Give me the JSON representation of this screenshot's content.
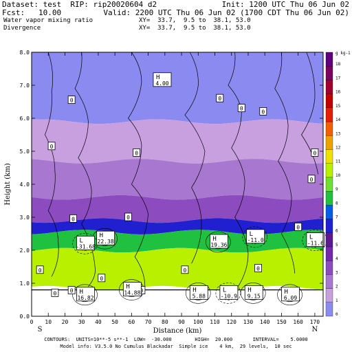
{
  "header": {
    "dataset": "Dataset: test  RIP: rip20020604 d2",
    "init": "Init: 1200 UTC Thu 06 Jun 02",
    "fcst": "Fcst:   10.00",
    "valid": "Valid: 2200 UTC Thu 06 Jun 02 (1700 CDT Thu 06 Jun 02)",
    "field1": "Water vapor mixing ratio",
    "xy1": "XY=  33.7,  9.5 to  38.1, 53.0",
    "field2": "Divergence",
    "xy2": "XY=  33.7,  9.5 to  38.1, 53.0"
  },
  "footer": {
    "line1": "CONTOURS:  UNITS=10**-5 s**-1  LOW=  -30.000        HIGH=  20.000       INTERVAL=    5.0000",
    "line2": "Model info: V3.5.0 No Cumulus Blackadar  Simple ice    4 km,  29 levels,  10 sec"
  },
  "chart_data": {
    "type": "cross-section",
    "xlabel": "Distance (km)",
    "ylabel": "Height (km)",
    "xlim": [
      0,
      175
    ],
    "ylim": [
      0,
      8
    ],
    "x_ticks": [
      0,
      10,
      20,
      30,
      40,
      50,
      60,
      70,
      80,
      90,
      100,
      110,
      120,
      130,
      140,
      150,
      160,
      170
    ],
    "y_ticks": [
      "0.0",
      "1.0",
      "2.0",
      "3.0",
      "4.0",
      "5.0",
      "6.0",
      "7.0",
      "8.0"
    ],
    "x_end_labels": {
      "left": "S",
      "right": "N"
    },
    "colorbar": {
      "unit": "g kg-1",
      "levels": [
        0,
        1,
        2,
        3,
        4,
        5,
        6,
        7,
        8,
        9,
        10,
        11,
        12,
        13,
        14,
        15,
        16,
        17,
        18
      ],
      "colors": [
        "#8a8af0",
        "#c8a0e0",
        "#a878d0",
        "#8c4cc0",
        "#7428b0",
        "#5c1890",
        "#2020d0",
        "#0060e0",
        "#20c040",
        "#70e030",
        "#b8f000",
        "#f0e000",
        "#f0a000",
        "#f06000",
        "#e02000",
        "#c00000",
        "#a00030",
        "#800060",
        "#600080"
      ]
    },
    "bands": [
      {
        "layer": "1-2 g/kg",
        "color": "#8a8af0",
        "bottom_km": 5.9,
        "top_km": 8.0
      },
      {
        "layer": "2-3 g/kg",
        "color": "#c8a0e0",
        "bottom_km": 4.7,
        "top_km": 5.9
      },
      {
        "layer": "3-4 g/kg",
        "color": "#a878d0",
        "bottom_km": 3.6,
        "top_km": 4.7
      },
      {
        "layer": "4-5 g/kg",
        "color": "#8c4cc0",
        "bottom_km": 2.9,
        "top_km": 3.6
      },
      {
        "layer": "6-7 g/kg",
        "color": "#2020d0",
        "bottom_km": 2.55,
        "top_km": 2.9
      },
      {
        "layer": "8-9 g/kg",
        "color": "#20c040",
        "bottom_km": 2.0,
        "top_km": 2.55
      },
      {
        "layer": "9-10 g/kg",
        "color": "#b8f000",
        "bottom_km": 0.85,
        "top_km": 2.0
      }
    ],
    "terrain_km": 0.8,
    "contour_labels": [
      {
        "x": 25,
        "y": 2.95,
        "text": "0"
      },
      {
        "x": 5,
        "y": 1.4,
        "text": "0"
      },
      {
        "x": 14,
        "y": 0.7,
        "text": "0"
      },
      {
        "x": 42,
        "y": 1.15,
        "text": "0"
      },
      {
        "x": 58,
        "y": 3.0,
        "text": "0"
      },
      {
        "x": 24,
        "y": 6.55,
        "text": "0"
      },
      {
        "x": 12,
        "y": 5.15,
        "text": "0"
      },
      {
        "x": 63,
        "y": 4.95,
        "text": "0"
      },
      {
        "x": 113,
        "y": 6.6,
        "text": "0"
      },
      {
        "x": 126,
        "y": 6.3,
        "text": "0"
      },
      {
        "x": 139,
        "y": 6.2,
        "text": "0"
      },
      {
        "x": 170,
        "y": 4.95,
        "text": "0"
      },
      {
        "x": 168,
        "y": 4.15,
        "text": "0"
      },
      {
        "x": 160,
        "y": 2.7,
        "text": "0"
      },
      {
        "x": 136,
        "y": 1.45,
        "text": "0"
      },
      {
        "x": 92,
        "y": 1.4,
        "text": "0"
      },
      {
        "x": 66,
        "y": 0.78,
        "text": "0"
      },
      {
        "x": 24,
        "y": 0.78,
        "text": "0"
      }
    ],
    "extrema": [
      {
        "x": 78,
        "y": 7.15,
        "type": "H",
        "value": "4.00"
      },
      {
        "x": 32,
        "y": 2.2,
        "type": "L",
        "value": "-31.68"
      },
      {
        "x": 44,
        "y": 2.35,
        "type": "H",
        "value": "22.38"
      },
      {
        "x": 112,
        "y": 2.25,
        "type": "H",
        "value": "19.36"
      },
      {
        "x": 134,
        "y": 2.4,
        "type": "L",
        "value": "-11.0"
      },
      {
        "x": 170,
        "y": 2.3,
        "type": "L",
        "value": "-11.6"
      },
      {
        "x": 32,
        "y": 0.65,
        "type": "H",
        "value": "16.82"
      },
      {
        "x": 60,
        "y": 0.8,
        "type": "H",
        "value": "14.88"
      },
      {
        "x": 100,
        "y": 0.7,
        "type": "H",
        "value": "5.88"
      },
      {
        "x": 118,
        "y": 0.7,
        "type": "L",
        "value": "-10.9"
      },
      {
        "x": 133,
        "y": 0.7,
        "type": "H",
        "value": "9.15"
      },
      {
        "x": 155,
        "y": 0.65,
        "type": "H",
        "value": "6.09"
      }
    ]
  }
}
